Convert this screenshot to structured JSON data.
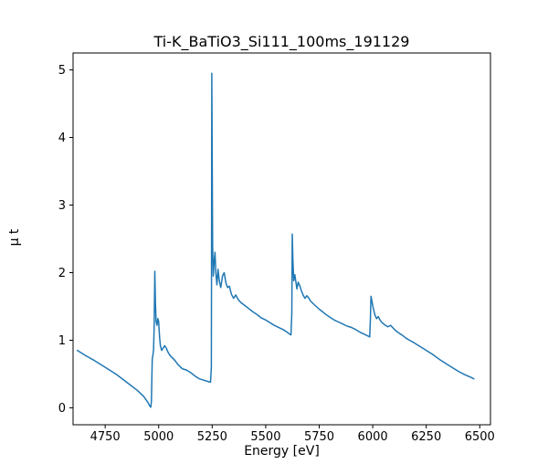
{
  "window": {
    "background": "#ffffff"
  },
  "chart_data": {
    "type": "line",
    "title": "Ti-K_BaTiO3_Si111_100ms_191129",
    "xlabel": "Energy [eV]",
    "ylabel": "μ t",
    "xlim": [
      4600,
      6550
    ],
    "ylim": [
      -0.25,
      5.25
    ],
    "xticks": [
      4750,
      5000,
      5250,
      5500,
      5750,
      6000,
      6250,
      6500
    ],
    "yticks": [
      0,
      1,
      2,
      3,
      4,
      5
    ],
    "grid": false,
    "legend": null,
    "line_color": "#1f77b4",
    "line_width": 1.5,
    "axis_color": "#000000",
    "series": [
      {
        "name": "mu_t",
        "points": [
          [
            4620,
            0.85
          ],
          [
            4660,
            0.77
          ],
          [
            4700,
            0.7
          ],
          [
            4750,
            0.6
          ],
          [
            4800,
            0.5
          ],
          [
            4850,
            0.38
          ],
          [
            4900,
            0.26
          ],
          [
            4930,
            0.17
          ],
          [
            4950,
            0.08
          ],
          [
            4958,
            0.03
          ],
          [
            4963,
            0.01
          ],
          [
            4966,
            0.1
          ],
          [
            4968,
            0.4
          ],
          [
            4970,
            0.72
          ],
          [
            4973,
            0.78
          ],
          [
            4976,
            0.85
          ],
          [
            4979,
            1.2
          ],
          [
            4982,
            2.02
          ],
          [
            4985,
            1.55
          ],
          [
            4988,
            1.28
          ],
          [
            4992,
            1.22
          ],
          [
            4996,
            1.32
          ],
          [
            5000,
            1.28
          ],
          [
            5004,
            1.05
          ],
          [
            5008,
            0.92
          ],
          [
            5014,
            0.85
          ],
          [
            5020,
            0.88
          ],
          [
            5028,
            0.92
          ],
          [
            5036,
            0.88
          ],
          [
            5044,
            0.82
          ],
          [
            5052,
            0.78
          ],
          [
            5064,
            0.74
          ],
          [
            5076,
            0.7
          ],
          [
            5090,
            0.64
          ],
          [
            5110,
            0.58
          ],
          [
            5130,
            0.56
          ],
          [
            5150,
            0.52
          ],
          [
            5170,
            0.47
          ],
          [
            5190,
            0.43
          ],
          [
            5210,
            0.41
          ],
          [
            5230,
            0.39
          ],
          [
            5242,
            0.38
          ],
          [
            5246,
            0.6
          ],
          [
            5247,
            2.0
          ],
          [
            5248,
            4.95
          ],
          [
            5250,
            3.8
          ],
          [
            5252,
            2.4
          ],
          [
            5255,
            1.95
          ],
          [
            5259,
            2.15
          ],
          [
            5263,
            2.3
          ],
          [
            5267,
            2.0
          ],
          [
            5272,
            1.82
          ],
          [
            5277,
            2.05
          ],
          [
            5283,
            1.88
          ],
          [
            5290,
            1.78
          ],
          [
            5298,
            1.95
          ],
          [
            5306,
            2.0
          ],
          [
            5314,
            1.85
          ],
          [
            5322,
            1.78
          ],
          [
            5330,
            1.8
          ],
          [
            5340,
            1.68
          ],
          [
            5350,
            1.62
          ],
          [
            5360,
            1.67
          ],
          [
            5372,
            1.6
          ],
          [
            5384,
            1.56
          ],
          [
            5400,
            1.52
          ],
          [
            5420,
            1.47
          ],
          [
            5440,
            1.42
          ],
          [
            5460,
            1.38
          ],
          [
            5480,
            1.33
          ],
          [
            5500,
            1.3
          ],
          [
            5520,
            1.26
          ],
          [
            5540,
            1.22
          ],
          [
            5560,
            1.19
          ],
          [
            5580,
            1.16
          ],
          [
            5600,
            1.12
          ],
          [
            5612,
            1.09
          ],
          [
            5618,
            1.08
          ],
          [
            5622,
            1.4
          ],
          [
            5624,
            2.57
          ],
          [
            5627,
            2.18
          ],
          [
            5631,
            1.88
          ],
          [
            5636,
            1.97
          ],
          [
            5641,
            1.86
          ],
          [
            5646,
            1.76
          ],
          [
            5652,
            1.86
          ],
          [
            5660,
            1.8
          ],
          [
            5668,
            1.72
          ],
          [
            5676,
            1.66
          ],
          [
            5684,
            1.62
          ],
          [
            5692,
            1.66
          ],
          [
            5700,
            1.63
          ],
          [
            5710,
            1.58
          ],
          [
            5722,
            1.54
          ],
          [
            5736,
            1.5
          ],
          [
            5750,
            1.46
          ],
          [
            5766,
            1.42
          ],
          [
            5782,
            1.38
          ],
          [
            5800,
            1.34
          ],
          [
            5820,
            1.3
          ],
          [
            5840,
            1.27
          ],
          [
            5860,
            1.24
          ],
          [
            5880,
            1.21
          ],
          [
            5900,
            1.19
          ],
          [
            5920,
            1.16
          ],
          [
            5940,
            1.12
          ],
          [
            5960,
            1.09
          ],
          [
            5980,
            1.06
          ],
          [
            5986,
            1.05
          ],
          [
            5989,
            1.3
          ],
          [
            5992,
            1.65
          ],
          [
            5996,
            1.58
          ],
          [
            6002,
            1.48
          ],
          [
            6010,
            1.38
          ],
          [
            6018,
            1.32
          ],
          [
            6026,
            1.35
          ],
          [
            6034,
            1.3
          ],
          [
            6044,
            1.26
          ],
          [
            6056,
            1.23
          ],
          [
            6070,
            1.2
          ],
          [
            6084,
            1.22
          ],
          [
            6098,
            1.17
          ],
          [
            6112,
            1.13
          ],
          [
            6126,
            1.1
          ],
          [
            6140,
            1.07
          ],
          [
            6156,
            1.03
          ],
          [
            6172,
            1.0
          ],
          [
            6190,
            0.97
          ],
          [
            6210,
            0.93
          ],
          [
            6230,
            0.89
          ],
          [
            6250,
            0.85
          ],
          [
            6280,
            0.79
          ],
          [
            6310,
            0.72
          ],
          [
            6340,
            0.66
          ],
          [
            6370,
            0.6
          ],
          [
            6400,
            0.54
          ],
          [
            6430,
            0.49
          ],
          [
            6460,
            0.45
          ],
          [
            6472,
            0.43
          ]
        ]
      }
    ]
  }
}
